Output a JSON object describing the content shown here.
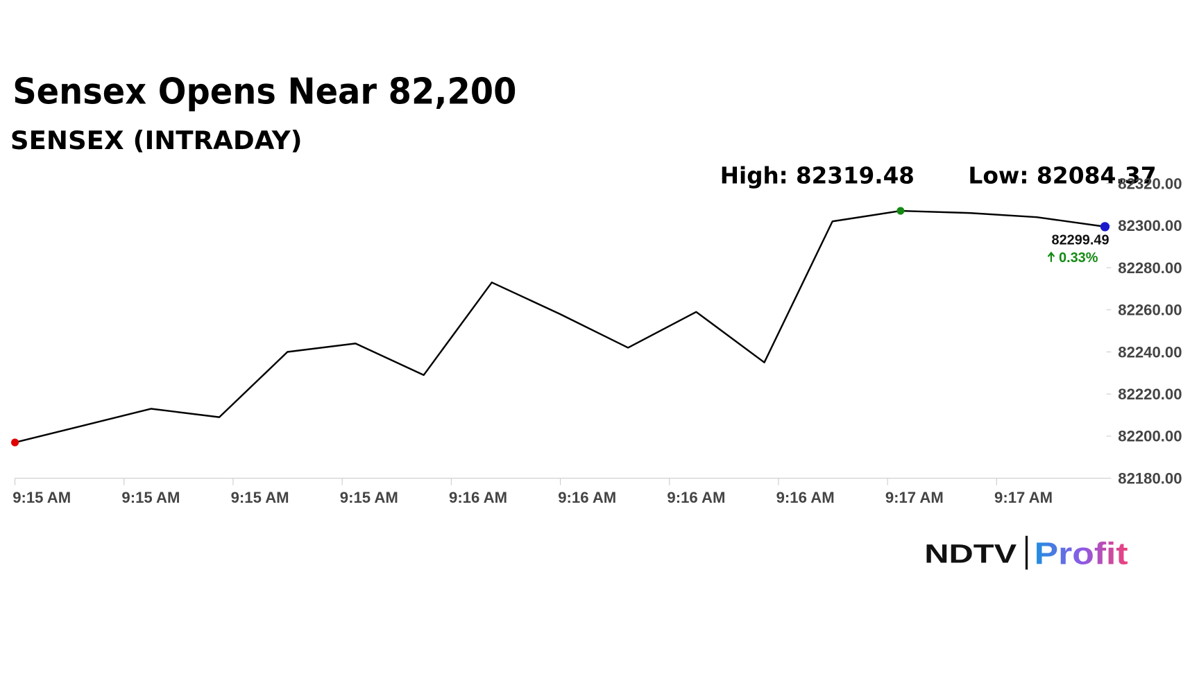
{
  "chart_data": {
    "type": "line",
    "title": "Sensex Opens Near 82,200",
    "subtitle": "SENSEX (INTRADAY)",
    "high_label": "High: 82319.48",
    "low_label": "Low: 82084.37",
    "last_value_label": "82299.49",
    "change_label": "0.33%",
    "x_tick_labels": [
      "9:15 AM",
      "9:15 AM",
      "9:15 AM",
      "9:15 AM",
      "9:16 AM",
      "9:16 AM",
      "9:16 AM",
      "9:16 AM",
      "9:17 AM",
      "9:17 AM"
    ],
    "series": [
      {
        "color": "#000000",
        "values": [
          82197,
          82205,
          82213,
          82209,
          82240,
          82244,
          82229,
          82273,
          82258,
          82242,
          82259,
          82235,
          82302,
          82307,
          82306,
          82304,
          82299.49
        ]
      }
    ],
    "ylim": [
      82180,
      82320
    ],
    "yticks": [
      {
        "value": 82180,
        "label": "82180.00"
      },
      {
        "value": 82200,
        "label": "82200.00"
      },
      {
        "value": 82220,
        "label": "82220.00"
      },
      {
        "value": 82240,
        "label": "82240.00"
      },
      {
        "value": 82260,
        "label": "82260.00"
      },
      {
        "value": 82280,
        "label": "82280.00"
      },
      {
        "value": 82300,
        "label": "82300.00"
      },
      {
        "value": 82320,
        "label": "82320.00"
      }
    ],
    "start_marker_color": "#e00000",
    "high_marker_color": "#148a14",
    "end_marker_color": "#1a1acc",
    "change_color": "#138a13"
  },
  "logo": {
    "left": "NDTV",
    "right": "Profit"
  }
}
